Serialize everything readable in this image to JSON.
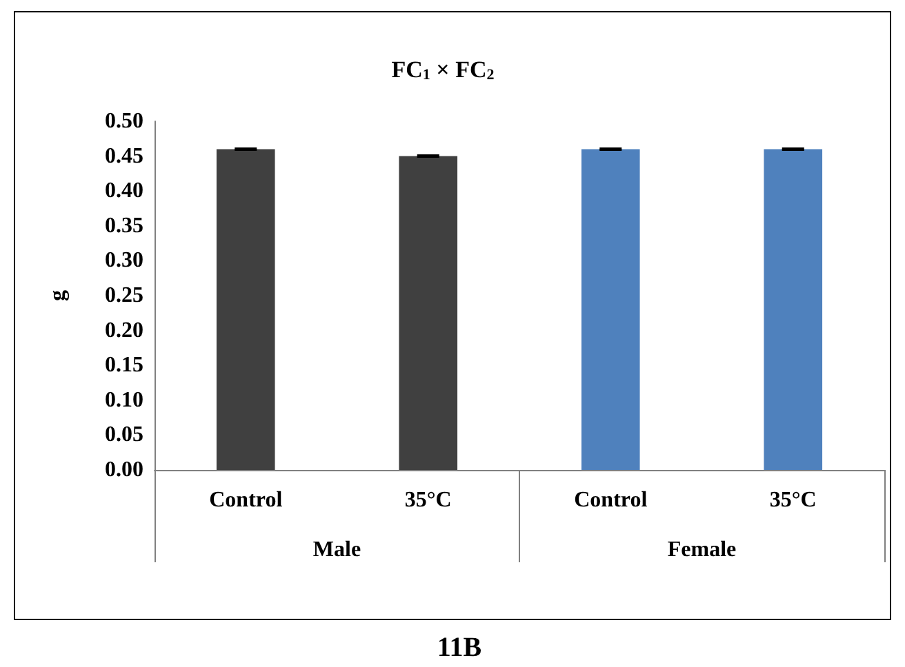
{
  "chart_data": {
    "type": "bar",
    "title": "FC$_{1}$ × FC$_{2}$",
    "ylabel": "g",
    "categories": [
      "Control",
      "35°C",
      "Control",
      "35°C"
    ],
    "values": [
      0.46,
      0.45,
      0.46,
      0.46
    ],
    "errors": [
      0.001,
      0.001,
      0.001,
      0.001
    ],
    "colors": [
      "#404040",
      "#404040",
      "#4f81bd",
      "#4f81bd"
    ],
    "ylim": [
      0,
      0.5
    ],
    "yticks": [
      {
        "value": 0,
        "label": "0.00"
      },
      {
        "value": 0.05,
        "label": "0.05"
      },
      {
        "value": 0.1,
        "label": "0.10"
      },
      {
        "value": 0.15,
        "label": "0.15"
      },
      {
        "value": 0.2,
        "label": "0.20"
      },
      {
        "value": 0.25,
        "label": "0.25"
      },
      {
        "value": 0.3,
        "label": "0.30"
      },
      {
        "value": 0.35,
        "label": "0.35"
      },
      {
        "value": 0.4,
        "label": "0.40"
      },
      {
        "value": 0.45,
        "label": "0.45"
      },
      {
        "value": 0.5,
        "label": "0.50"
      }
    ],
    "annotations": [
      "Male",
      "Female",
      "11B"
    ],
    "grid": false
  }
}
